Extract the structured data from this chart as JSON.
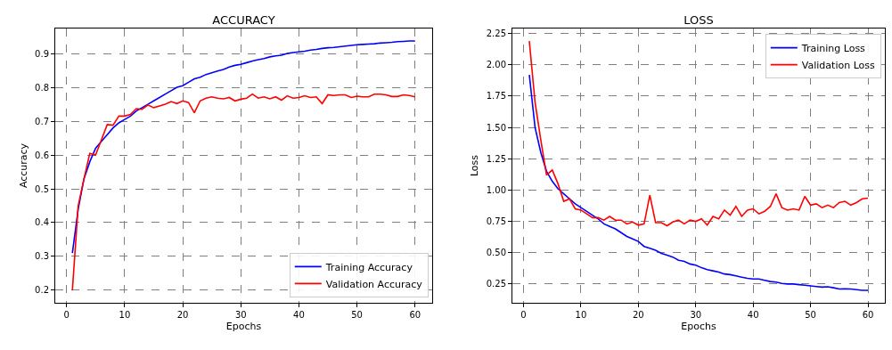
{
  "chart_data": [
    {
      "type": "line",
      "title": "ACCURACY",
      "xlabel": "Epochs",
      "ylabel": "Accuracy",
      "x": [
        1,
        2,
        3,
        4,
        5,
        6,
        7,
        8,
        9,
        10,
        11,
        12,
        13,
        14,
        15,
        16,
        17,
        18,
        19,
        20,
        21,
        22,
        23,
        24,
        25,
        26,
        27,
        28,
        29,
        30,
        31,
        32,
        33,
        34,
        35,
        36,
        37,
        38,
        39,
        40,
        41,
        42,
        43,
        44,
        45,
        46,
        47,
        48,
        49,
        50,
        51,
        52,
        53,
        54,
        55,
        56,
        57,
        58,
        59,
        60
      ],
      "series": [
        {
          "name": "Training Accuracy",
          "color": "#0000ff",
          "values": [
            0.31,
            0.44,
            0.53,
            0.58,
            0.62,
            0.64,
            0.66,
            0.68,
            0.695,
            0.705,
            0.715,
            0.73,
            0.74,
            0.75,
            0.76,
            0.77,
            0.78,
            0.79,
            0.8,
            0.805,
            0.815,
            0.825,
            0.83,
            0.838,
            0.843,
            0.848,
            0.853,
            0.86,
            0.865,
            0.868,
            0.873,
            0.878,
            0.882,
            0.885,
            0.89,
            0.893,
            0.895,
            0.9,
            0.903,
            0.905,
            0.907,
            0.91,
            0.912,
            0.915,
            0.917,
            0.918,
            0.92,
            0.922,
            0.924,
            0.926,
            0.927,
            0.928,
            0.929,
            0.931,
            0.932,
            0.933,
            0.935,
            0.936,
            0.937,
            0.937
          ]
        },
        {
          "name": "Validation Accuracy",
          "color": "#ff0000",
          "values": [
            0.2,
            0.45,
            0.53,
            0.605,
            0.6,
            0.645,
            0.69,
            0.688,
            0.715,
            0.715,
            0.72,
            0.737,
            0.735,
            0.748,
            0.74,
            0.745,
            0.75,
            0.758,
            0.752,
            0.76,
            0.755,
            0.725,
            0.76,
            0.768,
            0.772,
            0.768,
            0.766,
            0.77,
            0.76,
            0.765,
            0.768,
            0.78,
            0.768,
            0.772,
            0.766,
            0.772,
            0.762,
            0.775,
            0.768,
            0.77,
            0.775,
            0.77,
            0.772,
            0.752,
            0.778,
            0.776,
            0.778,
            0.778,
            0.77,
            0.774,
            0.772,
            0.772,
            0.78,
            0.78,
            0.778,
            0.773,
            0.773,
            0.778,
            0.776,
            0.772
          ]
        }
      ],
      "xlim": [
        -1.95,
        62.95
      ],
      "xticks": [
        0,
        10,
        20,
        30,
        40,
        50,
        60
      ],
      "ylim": [
        0.163,
        0.974
      ],
      "yticks": [
        0.2,
        0.3,
        0.4,
        0.5,
        0.6,
        0.7,
        0.8,
        0.9
      ],
      "grid": true,
      "legend": "bottom right",
      "marker": "none",
      "line_style": "solid"
    },
    {
      "type": "line",
      "title": "LOSS",
      "xlabel": "Epochs",
      "ylabel": "Loss",
      "x": [
        1,
        2,
        3,
        4,
        5,
        6,
        7,
        8,
        9,
        10,
        11,
        12,
        13,
        14,
        15,
        16,
        17,
        18,
        19,
        20,
        21,
        22,
        23,
        24,
        25,
        26,
        27,
        28,
        29,
        30,
        31,
        32,
        33,
        34,
        35,
        36,
        37,
        38,
        39,
        40,
        41,
        42,
        43,
        44,
        45,
        46,
        47,
        48,
        49,
        50,
        51,
        52,
        53,
        54,
        55,
        56,
        57,
        58,
        59,
        60
      ],
      "series": [
        {
          "name": "Training Loss",
          "color": "#0000ff",
          "values": [
            1.92,
            1.5,
            1.3,
            1.15,
            1.07,
            1.01,
            0.97,
            0.93,
            0.89,
            0.86,
            0.83,
            0.8,
            0.77,
            0.73,
            0.71,
            0.69,
            0.66,
            0.63,
            0.61,
            0.59,
            0.55,
            0.535,
            0.52,
            0.495,
            0.48,
            0.465,
            0.44,
            0.43,
            0.41,
            0.4,
            0.38,
            0.365,
            0.355,
            0.345,
            0.33,
            0.325,
            0.315,
            0.305,
            0.295,
            0.29,
            0.29,
            0.28,
            0.27,
            0.265,
            0.255,
            0.25,
            0.25,
            0.245,
            0.24,
            0.235,
            0.23,
            0.225,
            0.228,
            0.22,
            0.21,
            0.212,
            0.21,
            0.205,
            0.2,
            0.2
          ]
        },
        {
          "name": "Validation Loss",
          "color": "#ff0000",
          "values": [
            2.19,
            1.7,
            1.4,
            1.12,
            1.16,
            1.05,
            0.91,
            0.93,
            0.85,
            0.84,
            0.81,
            0.78,
            0.78,
            0.76,
            0.79,
            0.76,
            0.76,
            0.73,
            0.745,
            0.72,
            0.73,
            0.96,
            0.74,
            0.74,
            0.715,
            0.745,
            0.76,
            0.73,
            0.76,
            0.75,
            0.77,
            0.72,
            0.79,
            0.77,
            0.84,
            0.8,
            0.87,
            0.79,
            0.84,
            0.85,
            0.81,
            0.83,
            0.87,
            0.97,
            0.86,
            0.84,
            0.85,
            0.84,
            0.95,
            0.88,
            0.89,
            0.86,
            0.88,
            0.86,
            0.9,
            0.91,
            0.88,
            0.9,
            0.93,
            0.935
          ]
        }
      ],
      "xlim": [
        -1.95,
        62.95
      ],
      "xticks": [
        0,
        10,
        20,
        30,
        40,
        50,
        60
      ],
      "ylim": [
        0.1,
        2.29
      ],
      "yticks": [
        0.25,
        {
          "value": 0.5,
          "label": "0.50"
        },
        0.75,
        {
          "value": 1,
          "label": "1.00"
        },
        1.25,
        {
          "value": 1.5,
          "label": "1.50"
        },
        1.75,
        {
          "value": 2,
          "label": "2.00"
        },
        2.25
      ],
      "grid": true,
      "legend": "top right",
      "marker": "none",
      "line_style": "solid"
    }
  ]
}
